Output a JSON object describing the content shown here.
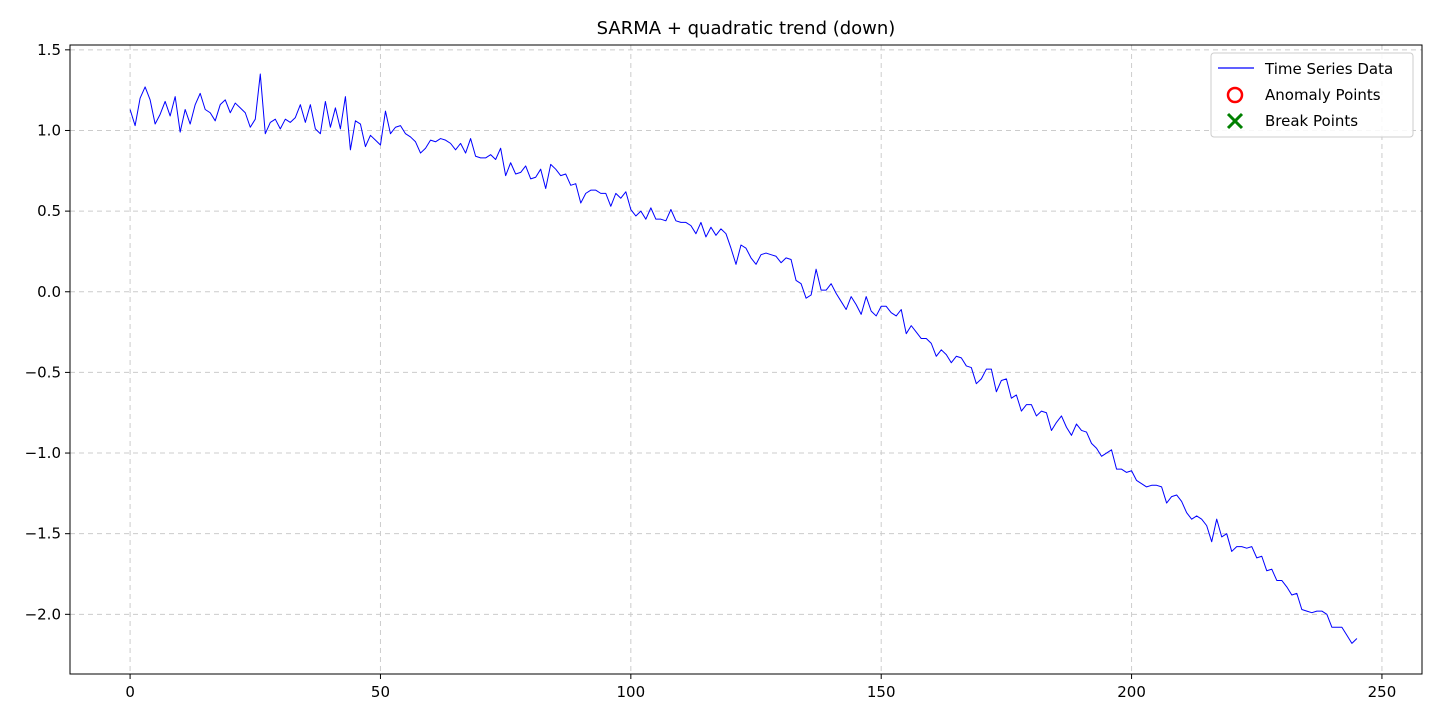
{
  "chart_data": {
    "type": "line",
    "title": "SARMA + quadratic trend (down)",
    "xlabel": "",
    "ylabel": "",
    "xlim": [
      -12,
      258
    ],
    "ylim": [
      -2.37,
      1.53
    ],
    "xticks": [
      0,
      50,
      100,
      150,
      200,
      250
    ],
    "yticks": [
      1.5,
      1.0,
      0.5,
      0.0,
      -0.5,
      -1.0,
      -1.5,
      -2.0
    ],
    "ytick_labels": [
      "1.5",
      "1.0",
      "0.5",
      "0.0",
      "−0.5",
      "−1.0",
      "−1.5",
      "−2.0"
    ],
    "grid": true,
    "legend_position": "top-right",
    "legend": [
      {
        "label": "Time Series Data",
        "marker": "line",
        "color": "#0000ff"
      },
      {
        "label": "Anomaly Points",
        "marker": "circle",
        "color": "#ff0000"
      },
      {
        "label": "Break Points",
        "marker": "x",
        "color": "#008000"
      }
    ],
    "series": [
      {
        "name": "Time Series Data",
        "color": "#0000ff",
        "x_start": 0,
        "x_step": 1,
        "values": [
          1.13,
          1.03,
          1.2,
          1.27,
          1.19,
          1.04,
          1.1,
          1.18,
          1.09,
          1.21,
          0.99,
          1.13,
          1.04,
          1.16,
          1.23,
          1.13,
          1.11,
          1.06,
          1.16,
          1.19,
          1.11,
          1.17,
          1.14,
          1.11,
          1.02,
          1.07,
          1.35,
          0.98,
          1.05,
          1.07,
          1.01,
          1.07,
          1.05,
          1.08,
          1.16,
          1.05,
          1.16,
          1.01,
          0.98,
          1.18,
          1.02,
          1.14,
          1.01,
          1.21,
          0.88,
          1.06,
          1.04,
          0.9,
          0.97,
          0.94,
          0.91,
          1.12,
          0.98,
          1.02,
          1.03,
          0.98,
          0.96,
          0.93,
          0.86,
          0.89,
          0.94,
          0.93,
          0.95,
          0.94,
          0.92,
          0.88,
          0.92,
          0.86,
          0.95,
          0.84,
          0.83,
          0.83,
          0.85,
          0.82,
          0.89,
          0.72,
          0.8,
          0.73,
          0.74,
          0.78,
          0.7,
          0.71,
          0.76,
          0.64,
          0.79,
          0.76,
          0.72,
          0.73,
          0.66,
          0.67,
          0.55,
          0.61,
          0.63,
          0.63,
          0.61,
          0.61,
          0.53,
          0.61,
          0.58,
          0.62,
          0.51,
          0.47,
          0.5,
          0.45,
          0.52,
          0.45,
          0.45,
          0.44,
          0.51,
          0.44,
          0.43,
          0.43,
          0.41,
          0.36,
          0.43,
          0.34,
          0.4,
          0.35,
          0.39,
          0.36,
          0.27,
          0.17,
          0.29,
          0.27,
          0.21,
          0.17,
          0.23,
          0.24,
          0.23,
          0.22,
          0.18,
          0.21,
          0.2,
          0.07,
          0.05,
          -0.04,
          -0.02,
          0.14,
          0.01,
          0.01,
          0.05,
          -0.01,
          -0.06,
          -0.11,
          -0.03,
          -0.08,
          -0.14,
          -0.03,
          -0.12,
          -0.15,
          -0.09,
          -0.09,
          -0.13,
          -0.15,
          -0.11,
          -0.26,
          -0.21,
          -0.25,
          -0.29,
          -0.29,
          -0.32,
          -0.4,
          -0.36,
          -0.39,
          -0.44,
          -0.4,
          -0.41,
          -0.46,
          -0.47,
          -0.57,
          -0.54,
          -0.48,
          -0.48,
          -0.62,
          -0.55,
          -0.54,
          -0.66,
          -0.64,
          -0.74,
          -0.7,
          -0.7,
          -0.77,
          -0.74,
          -0.75,
          -0.86,
          -0.81,
          -0.77,
          -0.84,
          -0.89,
          -0.82,
          -0.86,
          -0.87,
          -0.94,
          -0.97,
          -1.02,
          -1.0,
          -0.98,
          -1.1,
          -1.1,
          -1.12,
          -1.11,
          -1.17,
          -1.19,
          -1.21,
          -1.2,
          -1.2,
          -1.21,
          -1.31,
          -1.27,
          -1.26,
          -1.3,
          -1.37,
          -1.41,
          -1.39,
          -1.41,
          -1.45,
          -1.55,
          -1.41,
          -1.52,
          -1.5,
          -1.61,
          -1.58,
          -1.58,
          -1.59,
          -1.58,
          -1.65,
          -1.64,
          -1.73,
          -1.72,
          -1.79,
          -1.79,
          -1.83,
          -1.88,
          -1.87,
          -1.97,
          -1.98,
          -1.99,
          -1.98,
          -1.98,
          -2.0,
          -2.08,
          -2.08,
          -2.08,
          -2.13,
          -2.18,
          -2.15
        ]
      }
    ]
  }
}
